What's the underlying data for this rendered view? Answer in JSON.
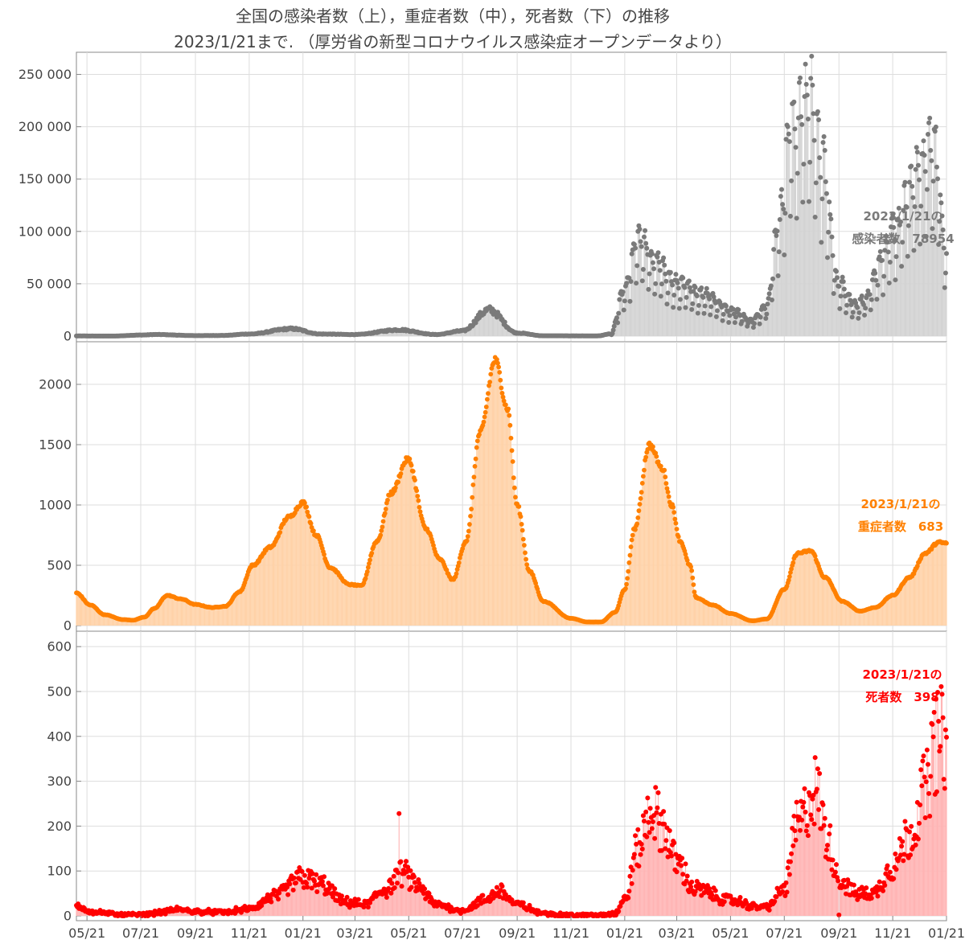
{
  "title": {
    "line1": "全国の感染者数（上），重症者数（中），死者数（下）の推移",
    "line2": "2023/1/21まで. （厚労省の新型コロナウイルス感染症オープンデータより）"
  },
  "colors": {
    "cases_point": "#7a7a7a",
    "cases_fill": "#d3d3d3",
    "severe_point": "#ff8000",
    "severe_fill": "#ffd2a8",
    "deaths_point": "#ff0000",
    "deaths_fill": "#ffb4b4",
    "grid": "#dddddd",
    "axis": "#888888",
    "text": "#444444"
  },
  "chart_data": [
    {
      "type": "scatter",
      "panel": "top",
      "series_name": "感染者数",
      "x_range": [
        "2020-05-09",
        "2023-01-21"
      ],
      "ylim": [
        0,
        265000
      ],
      "y_ticks": [
        "0",
        "50 000",
        "100 000",
        "150 000",
        "200 000",
        "250 000"
      ],
      "y_tick_values": [
        0,
        50000,
        100000,
        150000,
        200000,
        250000
      ],
      "annotation": [
        "2023/1/21の",
        "感染者数　78954"
      ],
      "last_value": 78954,
      "keyframes": [
        [
          "2020-05-09",
          150
        ],
        [
          "2020-06-20",
          100
        ],
        [
          "2020-07-21",
          1000
        ],
        [
          "2020-08-07",
          1500
        ],
        [
          "2020-09-21",
          500
        ],
        [
          "2020-10-21",
          600
        ],
        [
          "2020-11-21",
          2000
        ],
        [
          "2021-01-08",
          7000
        ],
        [
          "2021-02-10",
          2000
        ],
        [
          "2021-03-21",
          1500
        ],
        [
          "2021-05-10",
          6000
        ],
        [
          "2021-06-21",
          1500
        ],
        [
          "2021-07-21",
          5000
        ],
        [
          "2021-08-20",
          25000
        ],
        [
          "2021-09-21",
          3000
        ],
        [
          "2021-10-21",
          300
        ],
        [
          "2021-12-21",
          200
        ],
        [
          "2022-01-05",
          2000
        ],
        [
          "2022-01-21",
          45000
        ],
        [
          "2022-02-05",
          95000
        ],
        [
          "2022-02-25",
          70000
        ],
        [
          "2022-03-21",
          50000
        ],
        [
          "2022-04-21",
          40000
        ],
        [
          "2022-05-21",
          25000
        ],
        [
          "2022-06-15",
          15000
        ],
        [
          "2022-07-01",
          30000
        ],
        [
          "2022-07-15",
          110000
        ],
        [
          "2022-07-28",
          200000
        ],
        [
          "2022-08-20",
          230000
        ],
        [
          "2022-09-01",
          170000
        ],
        [
          "2022-09-21",
          50000
        ],
        [
          "2022-10-10",
          30000
        ],
        [
          "2022-10-21",
          35000
        ],
        [
          "2022-11-10",
          75000
        ],
        [
          "2022-11-21",
          100000
        ],
        [
          "2022-12-21",
          160000
        ],
        [
          "2023-01-06",
          190000
        ],
        [
          "2023-01-21",
          78954
        ]
      ]
    },
    {
      "type": "scatter",
      "panel": "middle",
      "series_name": "重症者数",
      "x_range": [
        "2020-05-09",
        "2023-01-21"
      ],
      "ylim": [
        0,
        2300
      ],
      "y_ticks": [
        "0",
        "500",
        "1000",
        "1500",
        "2000"
      ],
      "y_tick_values": [
        0,
        500,
        1000,
        1500,
        2000
      ],
      "annotation": [
        "2023/1/21の",
        "重症者数　683"
      ],
      "last_value": 683,
      "keyframes": [
        [
          "2020-05-09",
          270
        ],
        [
          "2020-05-25",
          170
        ],
        [
          "2020-06-10",
          90
        ],
        [
          "2020-07-01",
          50
        ],
        [
          "2020-07-12",
          45
        ],
        [
          "2020-07-25",
          70
        ],
        [
          "2020-08-05",
          140
        ],
        [
          "2020-08-20",
          250
        ],
        [
          "2020-09-05",
          220
        ],
        [
          "2020-09-21",
          175
        ],
        [
          "2020-10-10",
          150
        ],
        [
          "2020-10-25",
          160
        ],
        [
          "2020-11-10",
          280
        ],
        [
          "2020-11-25",
          500
        ],
        [
          "2020-12-15",
          650
        ],
        [
          "2021-01-05",
          900
        ],
        [
          "2021-01-21",
          1020
        ],
        [
          "2021-02-05",
          750
        ],
        [
          "2021-02-21",
          480
        ],
        [
          "2021-03-15",
          340
        ],
        [
          "2021-03-28",
          330
        ],
        [
          "2021-04-15",
          700
        ],
        [
          "2021-05-01",
          1100
        ],
        [
          "2021-05-20",
          1380
        ],
        [
          "2021-06-10",
          800
        ],
        [
          "2021-06-25",
          550
        ],
        [
          "2021-07-10",
          380
        ],
        [
          "2021-07-25",
          700
        ],
        [
          "2021-08-10",
          1600
        ],
        [
          "2021-08-27",
          2200
        ],
        [
          "2021-09-10",
          1800
        ],
        [
          "2021-09-21",
          1000
        ],
        [
          "2021-10-05",
          450
        ],
        [
          "2021-10-21",
          200
        ],
        [
          "2021-11-21",
          60
        ],
        [
          "2021-12-10",
          30
        ],
        [
          "2021-12-25",
          30
        ],
        [
          "2022-01-10",
          110
        ],
        [
          "2022-01-21",
          300
        ],
        [
          "2022-02-01",
          800
        ],
        [
          "2022-02-18",
          1500
        ],
        [
          "2022-03-05",
          1300
        ],
        [
          "2022-03-15",
          1000
        ],
        [
          "2022-03-25",
          700
        ],
        [
          "2022-04-05",
          500
        ],
        [
          "2022-04-12",
          230
        ],
        [
          "2022-05-01",
          170
        ],
        [
          "2022-05-21",
          100
        ],
        [
          "2022-06-15",
          40
        ],
        [
          "2022-07-01",
          55
        ],
        [
          "2022-07-21",
          300
        ],
        [
          "2022-08-05",
          600
        ],
        [
          "2022-08-20",
          620
        ],
        [
          "2022-09-05",
          400
        ],
        [
          "2022-09-25",
          200
        ],
        [
          "2022-10-15",
          120
        ],
        [
          "2022-11-01",
          150
        ],
        [
          "2022-11-21",
          250
        ],
        [
          "2022-12-10",
          400
        ],
        [
          "2022-12-28",
          600
        ],
        [
          "2023-01-12",
          690
        ],
        [
          "2023-01-21",
          683
        ]
      ]
    },
    {
      "type": "scatter",
      "panel": "bottom",
      "series_name": "死者数",
      "x_range": [
        "2020-05-09",
        "2023-01-21"
      ],
      "ylim": [
        0,
        620
      ],
      "y_ticks": [
        "0",
        "100",
        "200",
        "300",
        "400",
        "500",
        "600"
      ],
      "y_tick_values": [
        0,
        100,
        200,
        300,
        400,
        500,
        600
      ],
      "x_ticks": [
        "05/21",
        "07/21",
        "09/21",
        "11/21",
        "01/21",
        "03/21",
        "05/21",
        "07/21",
        "09/21",
        "11/21",
        "01/21",
        "03/21",
        "05/21",
        "07/21",
        "09/21",
        "11/21",
        "01/21"
      ],
      "x_tick_dates": [
        "2020-05-21",
        "2020-07-21",
        "2020-09-21",
        "2020-11-21",
        "2021-01-21",
        "2021-03-21",
        "2021-05-21",
        "2021-07-21",
        "2021-09-21",
        "2021-11-21",
        "2022-01-21",
        "2022-03-21",
        "2022-05-21",
        "2022-07-21",
        "2022-09-21",
        "2022-11-21",
        "2023-01-21"
      ],
      "annotation": [
        "2023/1/21の",
        "死者数　398"
      ],
      "last_value": 398,
      "outliers": [
        [
          "2021-05-10",
          228
        ],
        [
          "2022-09-21",
          2
        ]
      ],
      "keyframes": [
        [
          "2020-05-09",
          20
        ],
        [
          "2020-06-01",
          8
        ],
        [
          "2020-07-01",
          2
        ],
        [
          "2020-07-21",
          2
        ],
        [
          "2020-08-15",
          8
        ],
        [
          "2020-09-01",
          14
        ],
        [
          "2020-09-21",
          10
        ],
        [
          "2020-10-21",
          8
        ],
        [
          "2020-11-21",
          15
        ],
        [
          "2020-12-21",
          45
        ],
        [
          "2021-01-21",
          85
        ],
        [
          "2021-02-10",
          70
        ],
        [
          "2021-03-10",
          30
        ],
        [
          "2021-04-01",
          25
        ],
        [
          "2021-04-25",
          60
        ],
        [
          "2021-05-15",
          95
        ],
        [
          "2021-06-01",
          65
        ],
        [
          "2021-06-21",
          25
        ],
        [
          "2021-07-21",
          12
        ],
        [
          "2021-08-15",
          35
        ],
        [
          "2021-09-01",
          55
        ],
        [
          "2021-09-21",
          25
        ],
        [
          "2021-10-21",
          5
        ],
        [
          "2021-11-21",
          1
        ],
        [
          "2021-12-21",
          1
        ],
        [
          "2022-01-10",
          5
        ],
        [
          "2022-01-21",
          35
        ],
        [
          "2022-02-05",
          150
        ],
        [
          "2022-02-20",
          240
        ],
        [
          "2022-03-05",
          200
        ],
        [
          "2022-03-21",
          120
        ],
        [
          "2022-04-10",
          60
        ],
        [
          "2022-05-21",
          35
        ],
        [
          "2022-06-21",
          20
        ],
        [
          "2022-07-01",
          20
        ],
        [
          "2022-07-21",
          60
        ],
        [
          "2022-08-05",
          200
        ],
        [
          "2022-08-25",
          280
        ],
        [
          "2022-09-10",
          160
        ],
        [
          "2022-09-21",
          80
        ],
        [
          "2022-10-10",
          50
        ],
        [
          "2022-10-30",
          50
        ],
        [
          "2022-11-21",
          110
        ],
        [
          "2022-12-10",
          180
        ],
        [
          "2022-12-28",
          280
        ],
        [
          "2023-01-10",
          390
        ],
        [
          "2023-01-21",
          398
        ]
      ]
    }
  ]
}
